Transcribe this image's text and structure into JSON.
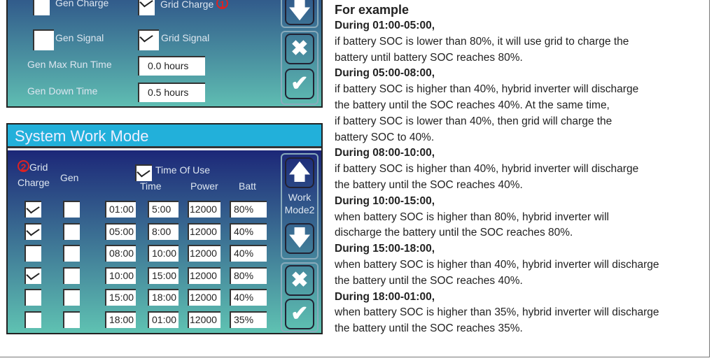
{
  "gen_panel": {
    "gen_charge": "Gen Charge",
    "grid_charge": "Grid Charge",
    "marker1": "1",
    "gen_signal": "Gen Signal",
    "grid_signal": "Grid Signal",
    "gen_max_run_label": "Gen Max Run Time",
    "gen_max_run_value": "0.0 hours",
    "gen_down_label": "Gen Down Time",
    "gen_down_value": "0.5 hours",
    "gen_charge_checked": false,
    "grid_charge_checked": true,
    "gen_signal_checked": false,
    "grid_signal_checked": true
  },
  "work_mode": {
    "title": "System Work Mode",
    "marker2": "2",
    "grid_label": "Grid",
    "charge_label": "Charge",
    "gen_label": "Gen",
    "time_of_use": "Time Of Use",
    "time_of_use_checked": true,
    "col_time": "Time",
    "col_power": "Power",
    "col_batt": "Batt",
    "mode_label_1": "Work",
    "mode_label_2": "Mode2",
    "rows": [
      {
        "grid": true,
        "gen": false,
        "start": "01:00",
        "end": "5:00",
        "power": "12000",
        "batt": "80%"
      },
      {
        "grid": true,
        "gen": false,
        "start": "05:00",
        "end": "8:00",
        "power": "12000",
        "batt": "40%"
      },
      {
        "grid": false,
        "gen": false,
        "start": "08:00",
        "end": "10:00",
        "power": "12000",
        "batt": "40%"
      },
      {
        "grid": true,
        "gen": false,
        "start": "10:00",
        "end": "15:00",
        "power": "12000",
        "batt": "80%"
      },
      {
        "grid": false,
        "gen": false,
        "start": "15:00",
        "end": "18:00",
        "power": "12000",
        "batt": "40%"
      },
      {
        "grid": false,
        "gen": false,
        "start": "18:00",
        "end": "01:00",
        "power": "12000",
        "batt": "35%"
      }
    ]
  },
  "icons": {
    "up": "arrow-up-icon",
    "down": "arrow-down-icon",
    "cancel": "close-icon",
    "ok": "check-icon"
  },
  "example": {
    "title": "For example",
    "lines": [
      {
        "bold": true,
        "text": "During 01:00-05:00,"
      },
      {
        "bold": false,
        "text": "if battery SOC is lower than 80%, it will use grid to charge the"
      },
      {
        "bold": false,
        "text": "battery until battery SOC reaches 80%."
      },
      {
        "bold": true,
        "text": "During 05:00-08:00,"
      },
      {
        "bold": false,
        "text": "if battery SOC is higher than 40%, hybrid inverter will discharge"
      },
      {
        "bold": false,
        "text": "the battery until the SOC reaches 40%. At the same time,"
      },
      {
        "bold": false,
        "text": "if battery SOC is lower than 40%, then grid will charge the"
      },
      {
        "bold": false,
        "text": "battery SOC to 40%."
      },
      {
        "bold": true,
        "text": "During 08:00-10:00,"
      },
      {
        "bold": false,
        "text": "if battery SOC is higher than 40%, hybrid inverter will discharge"
      },
      {
        "bold": false,
        "text": "the battery until the SOC reaches 40%."
      },
      {
        "bold": true,
        "text": "During 10:00-15:00,"
      },
      {
        "bold": false,
        "text": "when battery SOC is higher than 80%, hybrid inverter will"
      },
      {
        "bold": false,
        "text": "discharge the battery until the SOC reaches 80%."
      },
      {
        "bold": true,
        "text": "During 15:00-18:00,"
      },
      {
        "bold": false,
        "text": "when battery SOC is higher than 40%, hybrid inverter will discharge"
      },
      {
        "bold": false,
        "text": "the battery until the SOC reaches 40%."
      },
      {
        "bold": true,
        "text": "During 18:00-01:00,"
      },
      {
        "bold": false,
        "text": "when battery SOC is higher than 35%, hybrid inverter will discharge"
      },
      {
        "bold": false,
        "text": "the battery until the SOC reaches 35%."
      }
    ]
  }
}
